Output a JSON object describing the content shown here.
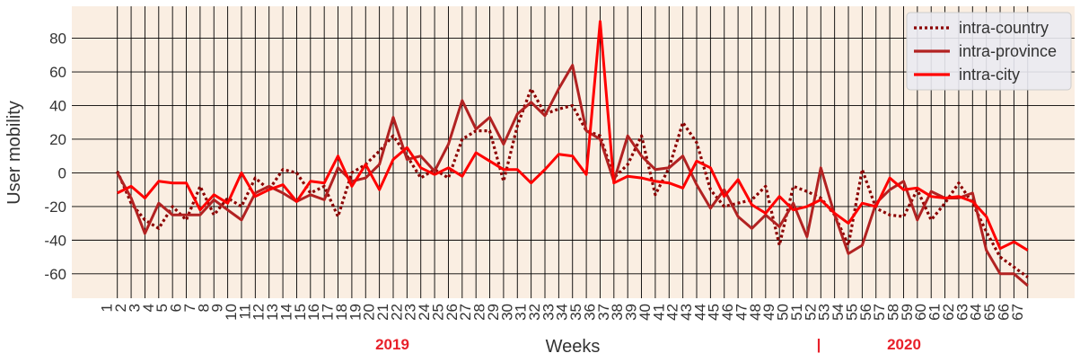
{
  "chart_data": {
    "type": "line",
    "xlabel": "Weeks",
    "ylabel": "User mobility",
    "x": [
      1,
      2,
      3,
      4,
      5,
      6,
      7,
      8,
      9,
      10,
      11,
      12,
      13,
      14,
      15,
      16,
      17,
      18,
      19,
      20,
      21,
      22,
      23,
      24,
      25,
      26,
      27,
      28,
      29,
      30,
      31,
      32,
      33,
      34,
      35,
      36,
      37,
      38,
      39,
      40,
      41,
      42,
      43,
      44,
      45,
      46,
      47,
      48,
      49,
      50,
      51,
      52,
      53,
      54,
      55,
      56,
      57,
      58,
      59,
      60,
      61,
      62,
      63,
      64,
      65,
      66,
      67
    ],
    "xticks": [
      1,
      2,
      3,
      4,
      5,
      6,
      7,
      8,
      9,
      10,
      11,
      12,
      13,
      14,
      15,
      16,
      17,
      18,
      19,
      20,
      21,
      22,
      23,
      24,
      25,
      26,
      27,
      28,
      29,
      30,
      31,
      32,
      33,
      34,
      35,
      36,
      37,
      38,
      39,
      40,
      41,
      42,
      43,
      44,
      45,
      46,
      47,
      48,
      49,
      50,
      51,
      52,
      53,
      54,
      55,
      56,
      57,
      58,
      59,
      60,
      61,
      62,
      63,
      64,
      65,
      66,
      67
    ],
    "xlim": [
      -2.3,
      70.4
    ],
    "ylim": [
      -74.5,
      99
    ],
    "yticks": [
      -60,
      -40,
      -20,
      0,
      20,
      40,
      60,
      80
    ],
    "grid": true,
    "legend": "upper right",
    "annotations": [
      "2019",
      "|",
      "2020"
    ],
    "series": [
      {
        "name": "intra-country",
        "color": "#8b0000",
        "linestyle": "dotted",
        "values": [
          1,
          -18,
          -28,
          -33,
          -20,
          -28,
          -8,
          -25,
          -15,
          -20,
          -3,
          -10,
          2,
          0,
          -12,
          -8,
          -26,
          0,
          5,
          13,
          22,
          10,
          -3,
          2,
          -3,
          20,
          25,
          25,
          -5,
          28,
          50,
          35,
          38,
          40,
          25,
          22,
          -3,
          5,
          22,
          -13,
          3,
          30,
          18,
          -10,
          -20,
          -18,
          -16,
          -8,
          -43,
          -8,
          -11,
          -15,
          -25,
          -43,
          2,
          -21,
          -25,
          -26,
          -10,
          -28,
          -18,
          -6,
          -18,
          -35,
          -50,
          -56,
          -62
        ]
      },
      {
        "name": "intra-province",
        "color": "#b22222",
        "linestyle": "solid",
        "values": [
          0,
          -15,
          -36,
          -18,
          -25,
          -25,
          -25,
          -16,
          -22,
          -28,
          -12,
          -8,
          -12,
          -17,
          -13,
          -16,
          3,
          -5,
          -3,
          5,
          33,
          8,
          10,
          1,
          17,
          43,
          26,
          33,
          17,
          35,
          42,
          34,
          50,
          64,
          25,
          20,
          -5,
          22,
          10,
          2,
          3,
          10,
          -7,
          -21,
          -10,
          -26,
          -33,
          -25,
          -32,
          -18,
          -38,
          3,
          -25,
          -48,
          -43,
          -18,
          -10,
          -5,
          -28,
          -11,
          -15,
          -15,
          -12,
          -46,
          -60,
          -60,
          -67
        ]
      },
      {
        "name": "intra-city",
        "color": "#ff0000",
        "linestyle": "solid",
        "values": [
          -12,
          -8,
          -15,
          -5,
          -6,
          -6,
          -22,
          -13,
          -18,
          0,
          -14,
          -10,
          -7,
          -17,
          -5,
          -6,
          10,
          -8,
          5,
          -10,
          8,
          15,
          3,
          -1,
          3,
          -2,
          12,
          7,
          2,
          2,
          -6,
          2,
          11,
          10,
          -1,
          90,
          -6,
          -2,
          -3,
          -5,
          -6,
          -9,
          7,
          3,
          -14,
          -4,
          -19,
          -24,
          -14,
          -22,
          -20,
          -16,
          -24,
          -30,
          -18,
          -20,
          -3,
          -10,
          -9,
          -14,
          -15,
          -14,
          -17,
          -26,
          -45,
          -41,
          -46
        ]
      }
    ]
  }
}
